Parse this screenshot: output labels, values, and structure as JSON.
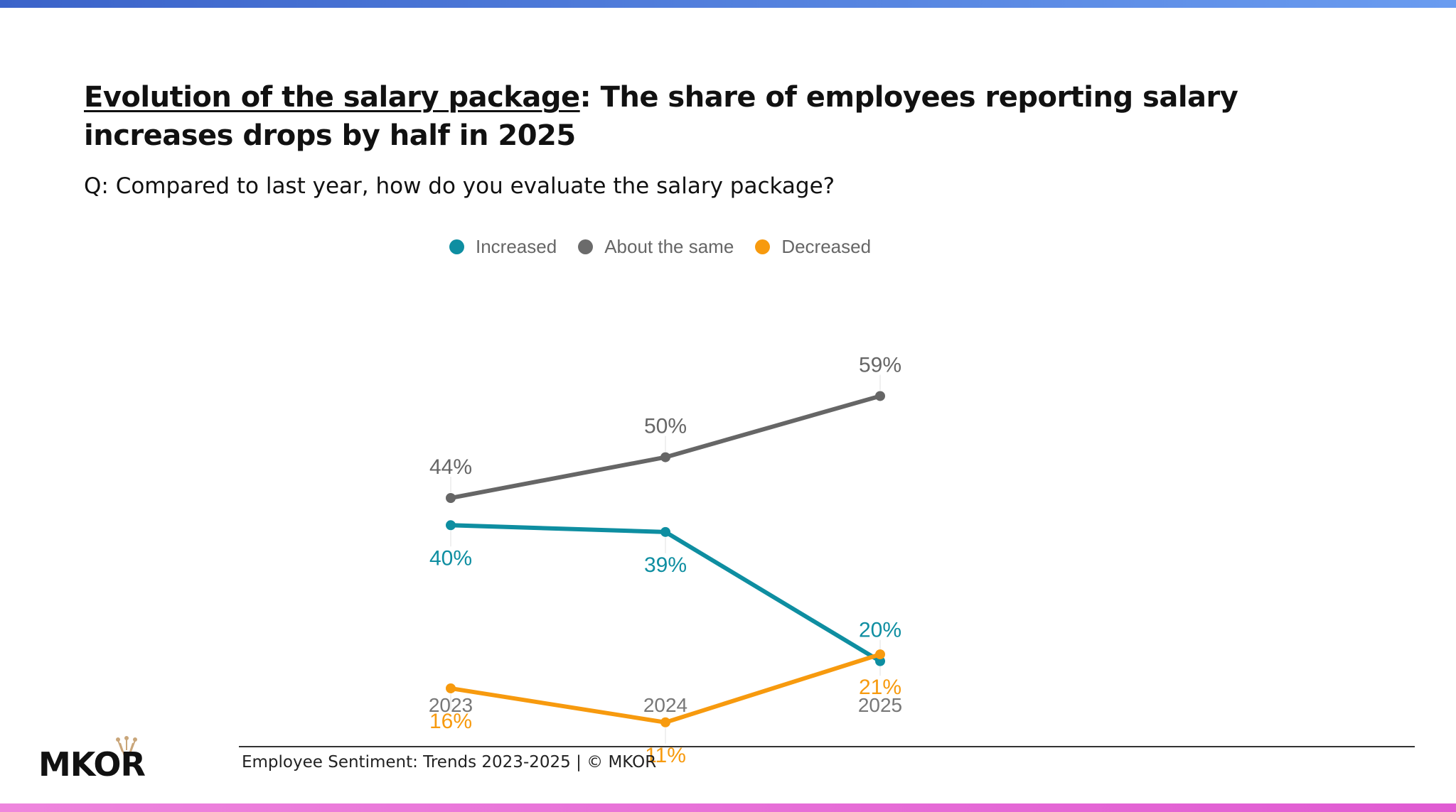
{
  "header": {
    "title_underlined": "Evolution of the salary package",
    "title_rest": ": The share of employees reporting salary increases drops by half in 2025",
    "subtitle": "Q: Compared to last year, how do you evaluate the salary package?"
  },
  "chart_data": {
    "type": "line",
    "categories": [
      "2023",
      "2024",
      "2025"
    ],
    "series": [
      {
        "name": "Increased",
        "color": "#0e8ea1",
        "values": [
          40,
          39,
          20
        ],
        "labels": [
          "40%",
          "39%",
          "20%"
        ]
      },
      {
        "name": "About the same",
        "color": "#666666",
        "values": [
          44,
          50,
          59
        ],
        "labels": [
          "44%",
          "50%",
          "59%"
        ]
      },
      {
        "name": "Decreased",
        "color": "#f79a0e",
        "values": [
          16,
          11,
          21
        ],
        "labels": [
          "16%",
          "11%",
          "21%"
        ]
      }
    ],
    "legend_position": "top",
    "grid": false,
    "y_axis_visible": false
  },
  "footer": {
    "text": "Employee Sentiment: Trends 2023-2025 | © MKOR",
    "logo_text": "MKOR"
  },
  "colors": {
    "top_bar": "#4a7ddc",
    "bottom_bar": "#e46fd7"
  }
}
